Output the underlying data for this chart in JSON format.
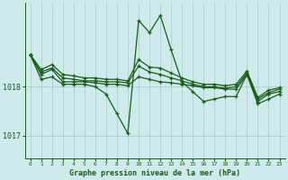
{
  "title": "Graphe pression niveau de la mer (hPa)",
  "xlabel_ticks": [
    0,
    1,
    2,
    3,
    4,
    5,
    6,
    7,
    8,
    9,
    10,
    11,
    12,
    13,
    14,
    15,
    16,
    17,
    18,
    19,
    20,
    21,
    22,
    23
  ],
  "ylim": [
    1016.55,
    1019.7
  ],
  "yticks": [
    1017,
    1018
  ],
  "background_color": "#ceeaea",
  "line_color": "#1a5c1a",
  "grid_color": "#aacece",
  "series": [
    [
      1018.65,
      1018.15,
      1018.2,
      1018.05,
      1018.05,
      1018.05,
      1018.0,
      1017.85,
      1017.45,
      1017.05,
      1019.35,
      1019.1,
      1019.45,
      1018.75,
      1018.1,
      1017.9,
      1017.7,
      1017.75,
      1017.8,
      1017.8,
      1018.25,
      1017.65,
      1017.75,
      1017.85
    ],
    [
      1018.65,
      1018.25,
      1018.35,
      1018.1,
      1018.1,
      1018.1,
      1018.08,
      1018.05,
      1018.05,
      1018.02,
      1018.2,
      1018.15,
      1018.1,
      1018.08,
      1018.05,
      1018.02,
      1017.98,
      1017.98,
      1017.95,
      1017.95,
      1018.25,
      1017.7,
      1017.85,
      1017.9
    ],
    [
      1018.65,
      1018.3,
      1018.38,
      1018.18,
      1018.15,
      1018.12,
      1018.12,
      1018.1,
      1018.1,
      1018.08,
      1018.42,
      1018.3,
      1018.25,
      1018.18,
      1018.12,
      1018.05,
      1018.0,
      1018.0,
      1017.97,
      1018.0,
      1018.28,
      1017.75,
      1017.88,
      1017.95
    ],
    [
      1018.65,
      1018.35,
      1018.45,
      1018.25,
      1018.22,
      1018.18,
      1018.18,
      1018.15,
      1018.15,
      1018.12,
      1018.55,
      1018.4,
      1018.38,
      1018.28,
      1018.18,
      1018.1,
      1018.05,
      1018.05,
      1018.02,
      1018.05,
      1018.32,
      1017.78,
      1017.93,
      1017.98
    ]
  ]
}
